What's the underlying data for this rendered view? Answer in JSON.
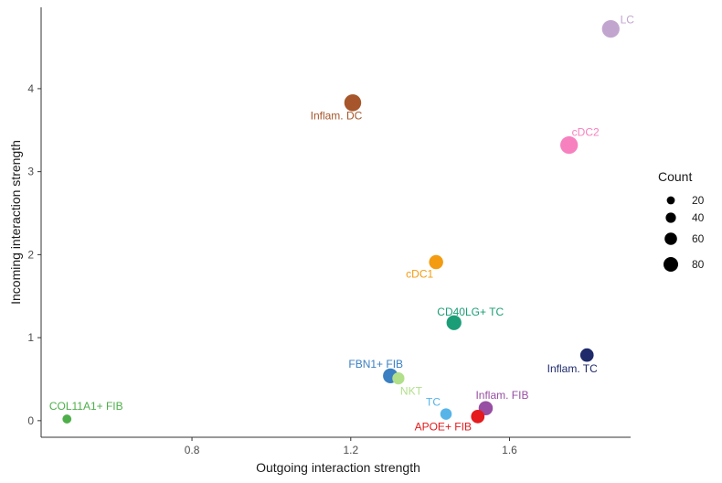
{
  "chart_data": {
    "type": "scatter",
    "title": "",
    "xlabel": "Outgoing interaction strength",
    "ylabel": "Incoming interaction strength",
    "xlim": [
      0.42,
      1.905
    ],
    "ylim": [
      -0.2,
      4.98
    ],
    "xticks": [
      0.8,
      1.2,
      1.6
    ],
    "xtick_labels": [
      "0.8",
      "1.2",
      "1.6"
    ],
    "yticks": [
      0,
      1,
      2,
      3,
      4
    ],
    "ytick_labels": [
      "0",
      "1",
      "2",
      "3",
      "4"
    ],
    "grid": false,
    "points": [
      {
        "name": "LC",
        "label": "LC",
        "x": 1.855,
        "y": 4.72,
        "count": 75,
        "color": "#c2a5cf"
      },
      {
        "name": "Inflam. DC",
        "label": "Inflam. DC",
        "x": 1.205,
        "y": 3.83,
        "count": 70,
        "color": "#a6562a"
      },
      {
        "name": "cDC2",
        "label": "cDC2",
        "x": 1.75,
        "y": 3.32,
        "count": 75,
        "color": "#f781bf"
      },
      {
        "name": "cDC1",
        "label": "cDC1",
        "x": 1.415,
        "y": 1.91,
        "count": 50,
        "color": "#f39c12"
      },
      {
        "name": "CD40LG+ TC",
        "label": "CD40LG+ TC",
        "x": 1.46,
        "y": 1.18,
        "count": 55,
        "color": "#1b9e77"
      },
      {
        "name": "Inflam. TC",
        "label": "Inflam. TC",
        "x": 1.795,
        "y": 0.79,
        "count": 45,
        "color": "#1f2a6b"
      },
      {
        "name": "FBN1+ FIB",
        "label": "FBN1+ FIB",
        "x": 1.3,
        "y": 0.54,
        "count": 55,
        "color": "#3a7fc1"
      },
      {
        "name": "NKT",
        "label": "NKT",
        "x": 1.32,
        "y": 0.51,
        "count": 35,
        "color": "#b2df8a"
      },
      {
        "name": "Inflam. FIB",
        "label": "Inflam. FIB",
        "x": 1.54,
        "y": 0.15,
        "count": 50,
        "color": "#984ea3"
      },
      {
        "name": "TC",
        "label": "TC",
        "x": 1.44,
        "y": 0.08,
        "count": 30,
        "color": "#56b4e9"
      },
      {
        "name": "APOE+ FIB",
        "label": "APOE+ FIB",
        "x": 1.52,
        "y": 0.05,
        "count": 45,
        "color": "#e41a1c"
      },
      {
        "name": "COL11A1+ FIB",
        "label": "COL11A1+ FIB",
        "x": 0.485,
        "y": 0.02,
        "count": 12,
        "color": "#4daf4a"
      }
    ],
    "legend": {
      "title": "Count",
      "position": "right",
      "entries": [
        {
          "label": "20",
          "count": 20
        },
        {
          "label": "40",
          "count": 40
        },
        {
          "label": "60",
          "count": 60
        },
        {
          "label": "80",
          "count": 80
        }
      ]
    }
  }
}
